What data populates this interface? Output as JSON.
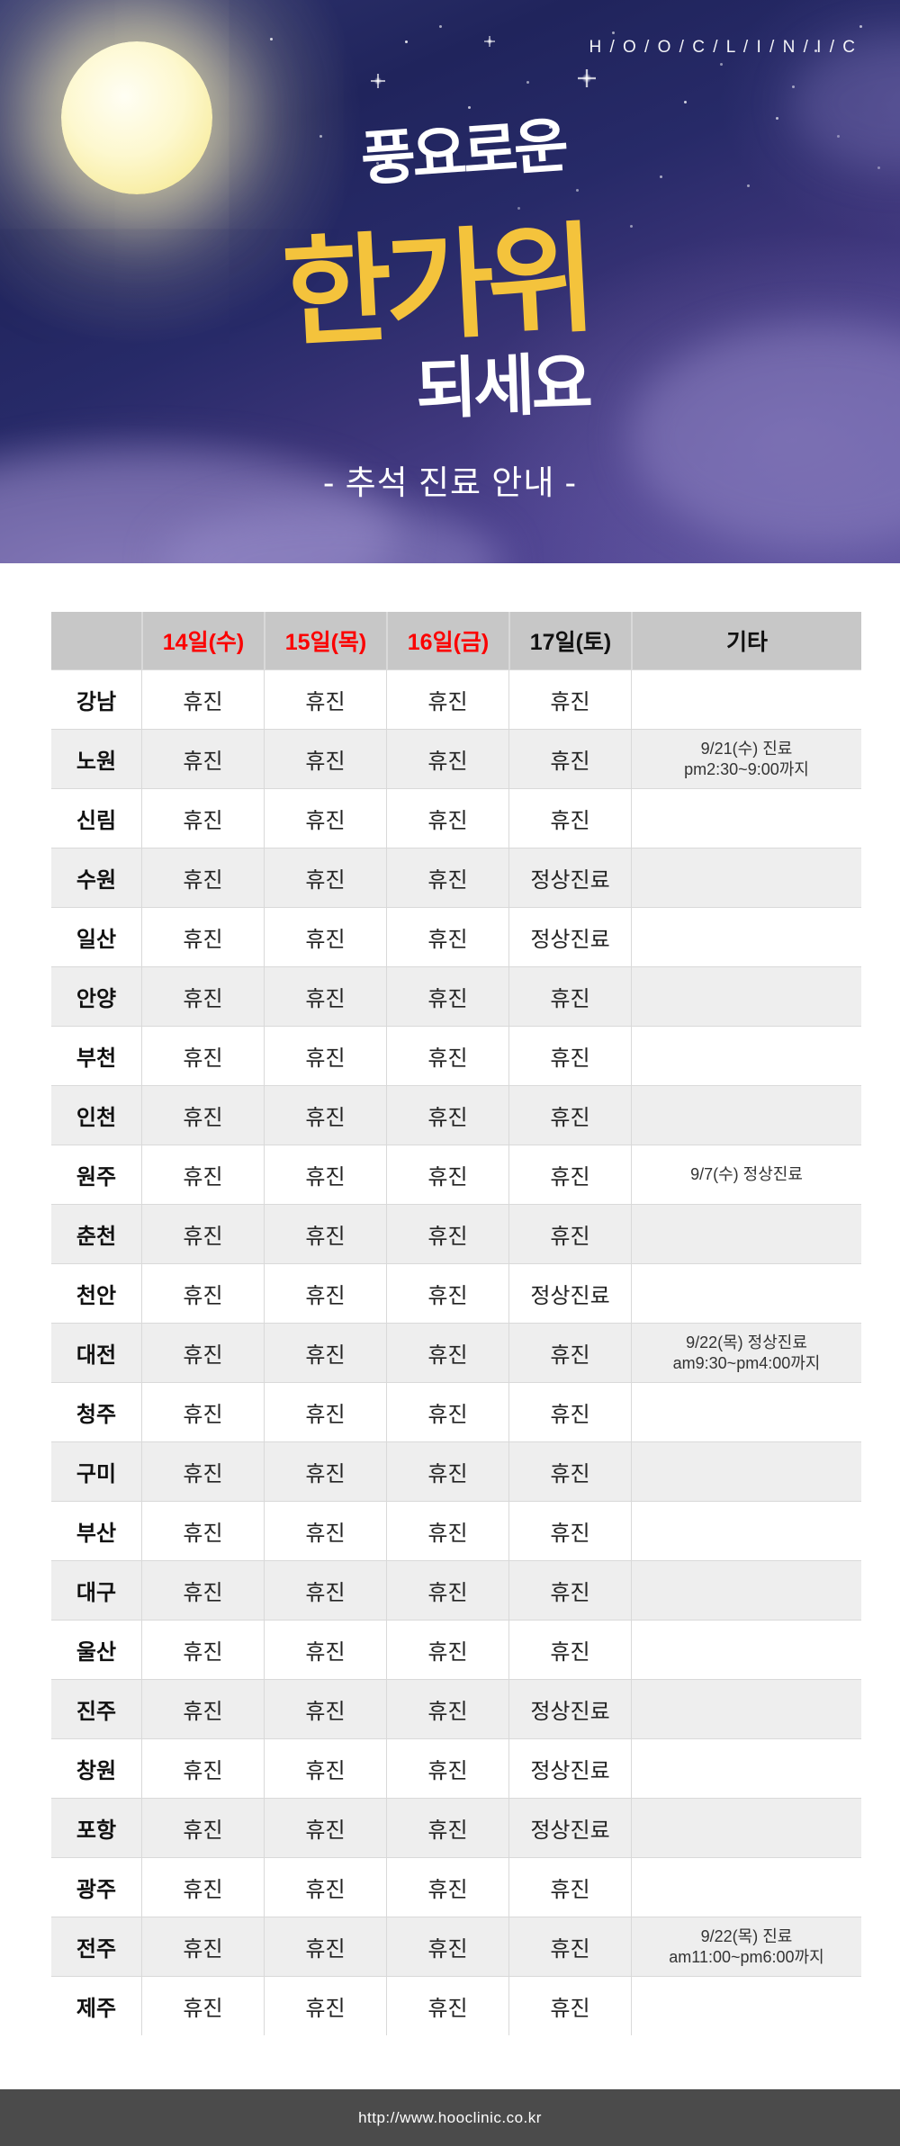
{
  "hero": {
    "logo": "H / O / O / C / L / I / N / I / C",
    "title_line1": "풍요로운",
    "title_line2": "한가위",
    "title_line3": "되세요",
    "subtitle": "- 추석 진료 안내 -"
  },
  "colors": {
    "title_accent": "#f4c33c",
    "header_red": "#fb0000",
    "header_bg": "#c7c7c7",
    "row_alt_bg": "#eeeeee",
    "footer_bg": "#4b4b4b",
    "sky_dark": "#20245c",
    "sky_purple": "#5e53a0"
  },
  "table": {
    "columns": [
      {
        "label": "",
        "red": false
      },
      {
        "label": "14일(수)",
        "red": true
      },
      {
        "label": "15일(목)",
        "red": true
      },
      {
        "label": "16일(금)",
        "red": true
      },
      {
        "label": "17일(토)",
        "red": false
      },
      {
        "label": "기타",
        "red": false
      }
    ],
    "rows": [
      {
        "region": "강남",
        "days": [
          "휴진",
          "휴진",
          "휴진",
          "휴진"
        ],
        "note": ""
      },
      {
        "region": "노원",
        "days": [
          "휴진",
          "휴진",
          "휴진",
          "휴진"
        ],
        "note": "9/21(수) 진료\npm2:30~9:00까지"
      },
      {
        "region": "신림",
        "days": [
          "휴진",
          "휴진",
          "휴진",
          "휴진"
        ],
        "note": ""
      },
      {
        "region": "수원",
        "days": [
          "휴진",
          "휴진",
          "휴진",
          "정상진료"
        ],
        "note": ""
      },
      {
        "region": "일산",
        "days": [
          "휴진",
          "휴진",
          "휴진",
          "정상진료"
        ],
        "note": ""
      },
      {
        "region": "안양",
        "days": [
          "휴진",
          "휴진",
          "휴진",
          "휴진"
        ],
        "note": ""
      },
      {
        "region": "부천",
        "days": [
          "휴진",
          "휴진",
          "휴진",
          "휴진"
        ],
        "note": ""
      },
      {
        "region": "인천",
        "days": [
          "휴진",
          "휴진",
          "휴진",
          "휴진"
        ],
        "note": ""
      },
      {
        "region": "원주",
        "days": [
          "휴진",
          "휴진",
          "휴진",
          "휴진"
        ],
        "note": "9/7(수) 정상진료"
      },
      {
        "region": "춘천",
        "days": [
          "휴진",
          "휴진",
          "휴진",
          "휴진"
        ],
        "note": ""
      },
      {
        "region": "천안",
        "days": [
          "휴진",
          "휴진",
          "휴진",
          "정상진료"
        ],
        "note": ""
      },
      {
        "region": "대전",
        "days": [
          "휴진",
          "휴진",
          "휴진",
          "휴진"
        ],
        "note": "9/22(목) 정상진료\nam9:30~pm4:00까지"
      },
      {
        "region": "청주",
        "days": [
          "휴진",
          "휴진",
          "휴진",
          "휴진"
        ],
        "note": ""
      },
      {
        "region": "구미",
        "days": [
          "휴진",
          "휴진",
          "휴진",
          "휴진"
        ],
        "note": ""
      },
      {
        "region": "부산",
        "days": [
          "휴진",
          "휴진",
          "휴진",
          "휴진"
        ],
        "note": ""
      },
      {
        "region": "대구",
        "days": [
          "휴진",
          "휴진",
          "휴진",
          "휴진"
        ],
        "note": ""
      },
      {
        "region": "울산",
        "days": [
          "휴진",
          "휴진",
          "휴진",
          "휴진"
        ],
        "note": ""
      },
      {
        "region": "진주",
        "days": [
          "휴진",
          "휴진",
          "휴진",
          "정상진료"
        ],
        "note": ""
      },
      {
        "region": "창원",
        "days": [
          "휴진",
          "휴진",
          "휴진",
          "정상진료"
        ],
        "note": ""
      },
      {
        "region": "포항",
        "days": [
          "휴진",
          "휴진",
          "휴진",
          "정상진료"
        ],
        "note": ""
      },
      {
        "region": "광주",
        "days": [
          "휴진",
          "휴진",
          "휴진",
          "휴진"
        ],
        "note": ""
      },
      {
        "region": "전주",
        "days": [
          "휴진",
          "휴진",
          "휴진",
          "휴진"
        ],
        "note": "9/22(목) 진료\nam11:00~pm6:00까지"
      },
      {
        "region": "제주",
        "days": [
          "휴진",
          "휴진",
          "휴진",
          "휴진"
        ],
        "note": ""
      }
    ]
  },
  "footer": {
    "url": "http://www.hooclinic.co.kr"
  }
}
